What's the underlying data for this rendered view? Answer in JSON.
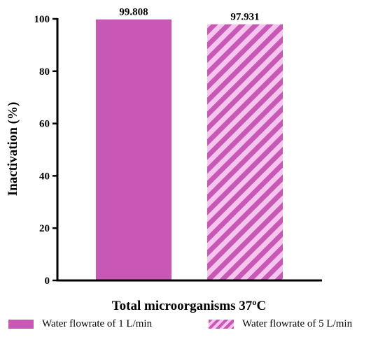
{
  "chart_data": {
    "type": "bar",
    "categories": [
      "Water flowrate of 1 L/min",
      "Water flowrate of 5 L/min"
    ],
    "values": [
      99.808,
      97.931
    ],
    "data_labels": [
      "99.808",
      "97.931"
    ],
    "xlabel": "Total microorganisms 37ºC",
    "ylabel": "Inactivation (%)",
    "ylim": [
      0,
      100
    ],
    "yticks": [
      0,
      20,
      40,
      60,
      80,
      100
    ],
    "grid": false,
    "legend_position": "bottom",
    "legend": [
      "Water flowrate of 1 L/min",
      "Water flowrate of 5 L/min"
    ],
    "colors": {
      "bar1_fill": "#c957b5",
      "bar2_stripe": "#c957b5",
      "bar2_background": "#f4c6ee"
    },
    "patterns": [
      "solid",
      "diagonal-stripes"
    ]
  }
}
